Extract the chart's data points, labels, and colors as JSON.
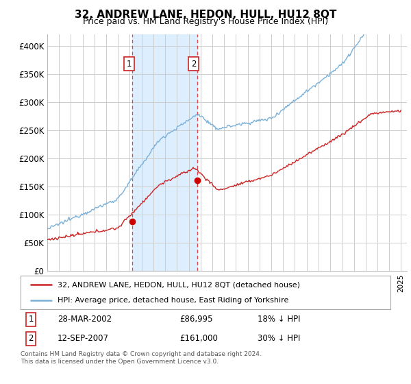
{
  "title": "32, ANDREW LANE, HEDON, HULL, HU12 8QT",
  "subtitle": "Price paid vs. HM Land Registry's House Price Index (HPI)",
  "ylabel_ticks": [
    "£0",
    "£50K",
    "£100K",
    "£150K",
    "£200K",
    "£250K",
    "£300K",
    "£350K",
    "£400K"
  ],
  "ytick_values": [
    0,
    50000,
    100000,
    150000,
    200000,
    250000,
    300000,
    350000,
    400000
  ],
  "ylim": [
    0,
    420000
  ],
  "xlim_year_start": 1995,
  "xlim_year_end": 2025.5,
  "background_color": "#ffffff",
  "plot_bg_color": "#ffffff",
  "grid_color": "#cccccc",
  "shaded_region_color": "#ddeeff",
  "sale1_date_numeric": 2002.23,
  "sale1_price": 86995,
  "sale2_date_numeric": 2007.71,
  "sale2_price": 161000,
  "vline_color": "#dd4444",
  "sale_marker_color": "#cc0000",
  "legend_line1_label": "32, ANDREW LANE, HEDON, HULL, HU12 8QT (detached house)",
  "legend_line2_label": "HPI: Average price, detached house, East Riding of Yorkshire",
  "table_row1": [
    "1",
    "28-MAR-2002",
    "£86,995",
    "18% ↓ HPI"
  ],
  "table_row2": [
    "2",
    "12-SEP-2007",
    "£161,000",
    "30% ↓ HPI"
  ],
  "footer_text": "Contains HM Land Registry data © Crown copyright and database right 2024.\nThis data is licensed under the Open Government Licence v3.0.",
  "hpi_line_color": "#7ab0d8",
  "price_line_color": "#cc2222"
}
